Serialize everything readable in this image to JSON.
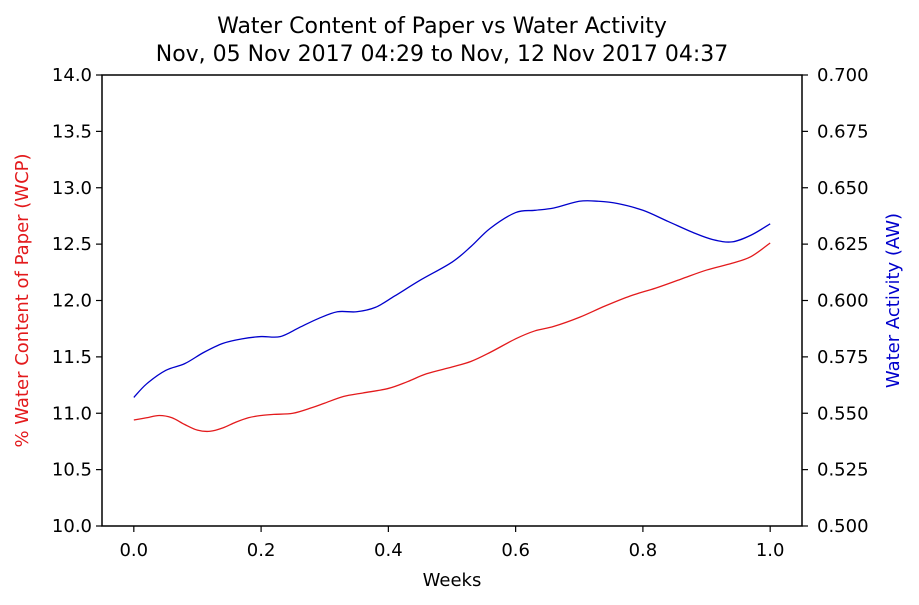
{
  "chart_data": {
    "type": "line",
    "title": "Water Content of Paper vs Water Activity",
    "subtitle": "Nov, 05 Nov 2017 04:29 to Nov, 12 Nov 2017 04:37",
    "xlabel": "Weeks",
    "ylabel_left": "% Water Content of Paper (WCP)",
    "ylabel_right": "Water Activity (AW)",
    "xlim": [
      -0.05,
      1.05
    ],
    "ylim_left": [
      10.0,
      14.0
    ],
    "ylim_right": [
      0.5,
      0.7
    ],
    "x_ticks": [
      "0.0",
      "0.2",
      "0.4",
      "0.6",
      "0.8",
      "1.0"
    ],
    "x_tick_values": [
      0.0,
      0.2,
      0.4,
      0.6,
      0.8,
      1.0
    ],
    "y_ticks_left": [
      "10.0",
      "10.5",
      "11.0",
      "11.5",
      "12.0",
      "12.5",
      "13.0",
      "13.5",
      "14.0"
    ],
    "y_tick_values_left": [
      10.0,
      10.5,
      11.0,
      11.5,
      12.0,
      12.5,
      13.0,
      13.5,
      14.0
    ],
    "y_ticks_right": [
      "0.500",
      "0.525",
      "0.550",
      "0.575",
      "0.600",
      "0.625",
      "0.650",
      "0.675",
      "0.700"
    ],
    "y_tick_values_right": [
      0.5,
      0.525,
      0.55,
      0.575,
      0.6,
      0.625,
      0.65,
      0.675,
      0.7
    ],
    "grid": false,
    "colors": {
      "wcp": "#e31a1c",
      "aw": "#0000cc",
      "left_label": "#e31a1c",
      "right_label": "#0000cc"
    },
    "series": [
      {
        "axis": "left",
        "x": [
          0.0,
          0.02,
          0.04,
          0.06,
          0.08,
          0.1,
          0.12,
          0.14,
          0.16,
          0.18,
          0.2,
          0.22,
          0.25,
          0.28,
          0.3,
          0.33,
          0.36,
          0.4,
          0.43,
          0.46,
          0.5,
          0.53,
          0.56,
          0.6,
          0.63,
          0.66,
          0.7,
          0.74,
          0.78,
          0.82,
          0.86,
          0.9,
          0.94,
          0.97,
          1.0
        ],
        "values": [
          10.94,
          10.96,
          10.98,
          10.96,
          10.9,
          10.85,
          10.84,
          10.87,
          10.92,
          10.96,
          10.98,
          10.99,
          11.0,
          11.05,
          11.09,
          11.15,
          11.18,
          11.22,
          11.28,
          11.35,
          11.41,
          11.46,
          11.54,
          11.66,
          11.73,
          11.77,
          11.85,
          11.95,
          12.04,
          12.11,
          12.19,
          12.27,
          12.33,
          12.39,
          12.51
        ]
      },
      {
        "axis": "right",
        "x": [
          0.0,
          0.02,
          0.05,
          0.08,
          0.11,
          0.14,
          0.17,
          0.2,
          0.23,
          0.26,
          0.29,
          0.32,
          0.35,
          0.38,
          0.41,
          0.45,
          0.5,
          0.53,
          0.56,
          0.6,
          0.63,
          0.66,
          0.7,
          0.73,
          0.76,
          0.8,
          0.84,
          0.88,
          0.91,
          0.94,
          0.97,
          1.0
        ],
        "values": [
          0.557,
          0.563,
          0.569,
          0.572,
          0.577,
          0.581,
          0.583,
          0.584,
          0.584,
          0.588,
          0.592,
          0.595,
          0.595,
          0.597,
          0.602,
          0.609,
          0.617,
          0.624,
          0.632,
          0.639,
          0.64,
          0.641,
          0.644,
          0.644,
          0.643,
          0.64,
          0.635,
          0.63,
          0.627,
          0.626,
          0.629,
          0.634
        ]
      }
    ]
  }
}
